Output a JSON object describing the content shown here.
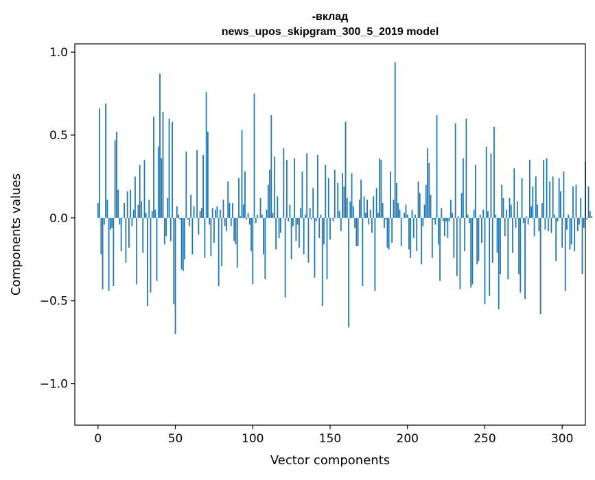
{
  "chart_data": {
    "type": "bar",
    "title_line1": "-вклад",
    "title_line2": "news_upos_skipgram_300_5_2019 model",
    "xlabel": "Vector components",
    "ylabel": "Components values",
    "xlim": [
      -15,
      315
    ],
    "ylim": [
      -1.25,
      1.05
    ],
    "xticks": [
      0,
      50,
      100,
      150,
      200,
      250,
      300
    ],
    "xtick_labels": [
      "0",
      "50",
      "100",
      "150",
      "200",
      "250",
      "300"
    ],
    "yticks": [
      -1.0,
      -0.5,
      0.0,
      0.5,
      1.0
    ],
    "ytick_labels": [
      "−1.0",
      "−0.5",
      "0.0",
      "0.5",
      "1.0"
    ],
    "bar_color": "#1f77b4",
    "grid": false,
    "values": [
      0.09,
      0.66,
      -0.22,
      -0.43,
      -0.04,
      0.69,
      0.11,
      -0.44,
      -0.07,
      -0.06,
      -0.41,
      0.47,
      0.52,
      0.17,
      -0.04,
      -0.2,
      0.0,
      0.09,
      -0.27,
      0.16,
      -0.18,
      0.17,
      -0.05,
      0.05,
      0.25,
      -0.4,
      0.08,
      0.32,
      0.1,
      -0.21,
      0.35,
      0.03,
      -0.53,
      0.11,
      -0.45,
      0.04,
      0.61,
      0.05,
      -0.38,
      0.43,
      0.87,
      0.36,
      0.64,
      -0.16,
      -0.11,
      0.12,
      0.6,
      -0.14,
      0.58,
      -0.52,
      -0.7,
      0.07,
      0.02,
      -0.01,
      -0.31,
      -0.32,
      -0.25,
      0.4,
      -0.01,
      -0.05,
      0.14,
      -0.22,
      0.07,
      0.0,
      0.41,
      -0.1,
      0.04,
      0.06,
      0.38,
      -0.24,
      0.76,
      0.52,
      -0.04,
      -0.23,
      0.06,
      -0.15,
      0.05,
      0.07,
      -0.41,
      0.05,
      -0.29,
      0.11,
      -0.05,
      -0.08,
      0.22,
      0.09,
      -0.05,
      0.09,
      -0.14,
      -0.16,
      -0.3,
      0.24,
      0.01,
      0.53,
      0.08,
      0.28,
      -0.01,
      0.03,
      -0.04,
      -0.2,
      -0.4,
      0.75,
      -0.03,
      0.02,
      0.0,
      0.12,
      0.02,
      -0.22,
      -0.37,
      0.05,
      0.2,
      0.29,
      0.62,
      0.03,
      0.37,
      -0.19,
      0.13,
      -0.12,
      -0.09,
      0.0,
      0.42,
      -0.48,
      0.35,
      -0.02,
      0.08,
      -0.25,
      -0.05,
      0.36,
      -0.14,
      -0.04,
      -0.18,
      0.06,
      0.28,
      -0.22,
      0.02,
      0.39,
      -0.27,
      0.06,
      -0.01,
      0.18,
      -0.36,
      -0.02,
      0.38,
      -0.12,
      0.02,
      -0.53,
      -0.16,
      0.32,
      -0.37,
      0.24,
      -0.13,
      0.0,
      -0.02,
      0.29,
      0.0,
      0.21,
      0.04,
      -0.08,
      0.27,
      0.19,
      0.58,
      0.12,
      -0.66,
      0.1,
      0.27,
      0.07,
      -0.06,
      -0.17,
      -0.17,
      0.11,
      0.23,
      -0.41,
      0.13,
      0.03,
      0.11,
      -0.04,
      0.05,
      -0.09,
      0.13,
      -0.44,
      0.18,
      0.03,
      0.36,
      0.35,
      0.09,
      -0.06,
      -0.01,
      -0.18,
      -0.19,
      0.28,
      -0.15,
      0.11,
      0.94,
      0.21,
      0.09,
      0.05,
      -0.17,
      0.0,
      0.03,
      0.08,
      0.02,
      -0.19,
      -0.24,
      0.05,
      -0.12,
      0.02,
      -0.2,
      0.22,
      0.15,
      -0.28,
      -0.05,
      0.08,
      0.2,
      0.42,
      0.33,
      0.14,
      -0.24,
      -0.01,
      -0.04,
      0.62,
      -0.16,
      -0.38,
      0.06,
      -0.02,
      -0.11,
      -0.02,
      -0.12,
      -0.02,
      0.11,
      0.03,
      -0.24,
      0.57,
      -0.35,
      0.01,
      -0.43,
      0.15,
      0.36,
      -0.2,
      0.6,
      0.02,
      -0.03,
      -0.42,
      -0.4,
      0.05,
      0.32,
      -0.28,
      -0.26,
      0.02,
      -0.15,
      0.05,
      -0.52,
      0.43,
      0.04,
      -0.47,
      0.39,
      -0.27,
      0.55,
      0.02,
      -0.21,
      -0.55,
      -0.34,
      0.2,
      0.12,
      -0.11,
      0.05,
      -0.37,
      0.12,
      0.08,
      -0.21,
      0.3,
      -0.06,
      0.1,
      -0.34,
      -0.45,
      0.24,
      -0.03,
      -0.49,
      0.01,
      -0.04,
      0.35,
      0.07,
      0.19,
      -0.11,
      0.25,
      0.08,
      -0.08,
      -0.58,
      0.09,
      0.35,
      -0.07,
      0.36,
      -0.08,
      0.22,
      -0.09,
      0.25,
      0.02,
      -0.26,
      -0.02,
      0.24,
      0.16,
      -0.18,
      0.28,
      -0.44,
      -0.07,
      0.02,
      -0.19,
      -0.16,
      0.19,
      -0.2,
      0.2,
      -0.08,
      -0.04,
      0.12,
      -0.34,
      -0.06,
      0.34,
      -0.01,
      0.19,
      0.04,
      0.01
    ]
  }
}
